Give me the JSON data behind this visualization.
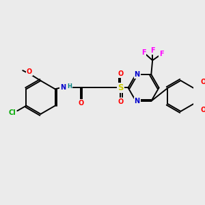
{
  "bg_color": "#ebebeb",
  "bond_color": "#000000",
  "bond_lw": 1.4,
  "atom_colors": {
    "N": "#0000cc",
    "O": "#ff0000",
    "S": "#cccc00",
    "Cl": "#00aa00",
    "F": "#ff00ff",
    "H": "#008080",
    "C": "#000000"
  },
  "font_size": 7.0,
  "fig_size": [
    3.0,
    3.0
  ],
  "dpi": 100
}
